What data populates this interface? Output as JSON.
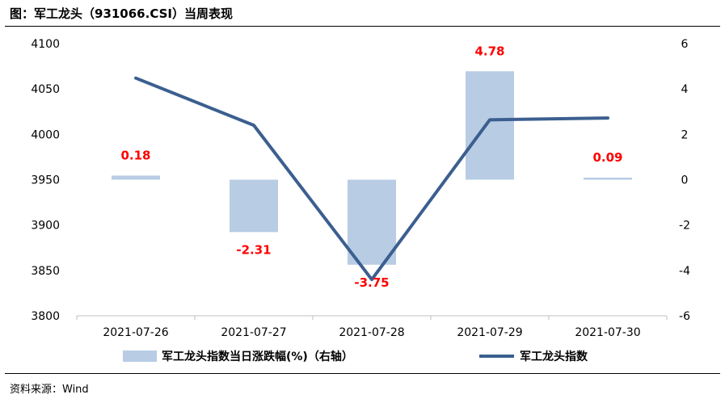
{
  "figure": {
    "title": "图：军工龙头（931066.CSI）当周表现",
    "source": "资料来源：Wind"
  },
  "chart_data": {
    "type": "bar+line",
    "categories": [
      "2021-07-26",
      "2021-07-27",
      "2021-07-28",
      "2021-07-29",
      "2021-07-30"
    ],
    "series": [
      {
        "name": "军工龙头指数当日涨跌幅(%)（右轴）",
        "type": "bar",
        "axis": "right",
        "values": [
          0.18,
          -2.31,
          -3.75,
          4.78,
          0.09
        ],
        "data_labels": [
          "0.18",
          "-2.31",
          "-3.75",
          "4.78",
          "0.09"
        ],
        "color": "#b8cce4"
      },
      {
        "name": "军工龙头指数",
        "type": "line",
        "axis": "left",
        "values": [
          4062,
          4010,
          3840,
          4016,
          4018
        ],
        "color": "#3b5f8f"
      }
    ],
    "y_left": {
      "range": [
        3800,
        4100
      ],
      "ticks": [
        "3800",
        "3850",
        "3900",
        "3950",
        "4000",
        "4050",
        "4100"
      ]
    },
    "y_right": {
      "range": [
        -6,
        6
      ],
      "ticks": [
        "-6",
        "-4",
        "-2",
        "0",
        "2",
        "4",
        "6"
      ]
    },
    "data_label_color": "#ff0000",
    "legend_position": "bottom",
    "grid": false
  }
}
